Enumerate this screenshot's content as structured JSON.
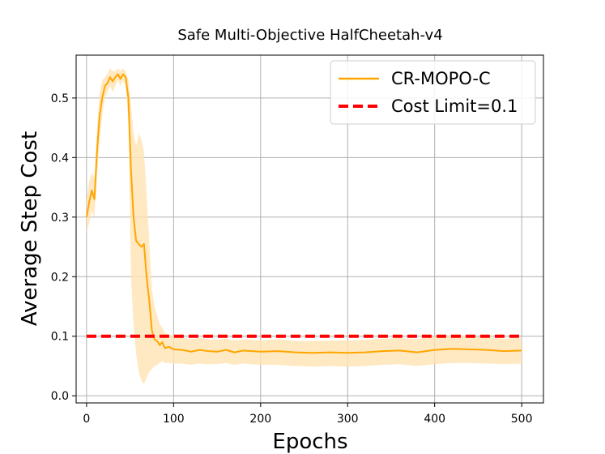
{
  "chart_data": {
    "type": "line",
    "title": "Safe Multi-Objective HalfCheetah-v4",
    "xlabel": "Epochs",
    "ylabel": "Average Step Cost",
    "xlim": [
      -12,
      525
    ],
    "ylim": [
      -0.012,
      0.572
    ],
    "xticks": [
      0,
      100,
      200,
      300,
      400,
      500
    ],
    "yticks": [
      0.0,
      0.1,
      0.2,
      0.3,
      0.4,
      0.5
    ],
    "xtick_labels": [
      "0",
      "100",
      "200",
      "300",
      "400",
      "500"
    ],
    "ytick_labels": [
      "0.0",
      "0.1",
      "0.2",
      "0.3",
      "0.4",
      "0.5"
    ],
    "grid": true,
    "legend_position": "top-right",
    "colors": {
      "series": "#ffa500",
      "band": "#ffe4b3",
      "limit": "#ff0000",
      "grid": "#b0b0b0"
    },
    "series": [
      {
        "name": "CR-MOPO-C",
        "style": "solid",
        "x": [
          0,
          3,
          6,
          9,
          12,
          15,
          18,
          21,
          24,
          27,
          30,
          33,
          36,
          39,
          42,
          45,
          48,
          51,
          54,
          57,
          60,
          63,
          66,
          69,
          72,
          75,
          78,
          81,
          84,
          87,
          90,
          95,
          100,
          110,
          120,
          130,
          140,
          150,
          160,
          170,
          180,
          190,
          200,
          220,
          240,
          260,
          280,
          300,
          320,
          340,
          360,
          380,
          400,
          420,
          440,
          460,
          480,
          500
        ],
        "y": [
          0.3,
          0.325,
          0.345,
          0.33,
          0.41,
          0.47,
          0.5,
          0.52,
          0.525,
          0.535,
          0.528,
          0.535,
          0.54,
          0.532,
          0.54,
          0.535,
          0.5,
          0.38,
          0.3,
          0.26,
          0.255,
          0.25,
          0.255,
          0.2,
          0.16,
          0.11,
          0.095,
          0.092,
          0.085,
          0.09,
          0.08,
          0.082,
          0.078,
          0.077,
          0.074,
          0.077,
          0.075,
          0.074,
          0.077,
          0.073,
          0.076,
          0.075,
          0.074,
          0.075,
          0.073,
          0.072,
          0.073,
          0.072,
          0.073,
          0.075,
          0.076,
          0.073,
          0.077,
          0.079,
          0.078,
          0.077,
          0.075,
          0.076
        ],
        "upper": [
          0.33,
          0.36,
          0.375,
          0.365,
          0.45,
          0.51,
          0.53,
          0.535,
          0.54,
          0.55,
          0.545,
          0.545,
          0.55,
          0.545,
          0.55,
          0.545,
          0.53,
          0.49,
          0.44,
          0.42,
          0.44,
          0.43,
          0.41,
          0.34,
          0.26,
          0.18,
          0.15,
          0.135,
          0.12,
          0.115,
          0.105,
          0.103,
          0.1,
          0.098,
          0.095,
          0.097,
          0.095,
          0.094,
          0.096,
          0.093,
          0.095,
          0.094,
          0.093,
          0.095,
          0.092,
          0.092,
          0.093,
          0.093,
          0.094,
          0.096,
          0.097,
          0.095,
          0.1,
          0.102,
          0.1,
          0.098,
          0.096,
          0.097
        ],
        "lower": [
          0.275,
          0.29,
          0.31,
          0.3,
          0.37,
          0.43,
          0.47,
          0.5,
          0.51,
          0.52,
          0.51,
          0.52,
          0.53,
          0.52,
          0.53,
          0.52,
          0.46,
          0.2,
          0.12,
          0.07,
          0.04,
          0.025,
          0.02,
          0.03,
          0.04,
          0.045,
          0.05,
          0.052,
          0.055,
          0.058,
          0.055,
          0.055,
          0.054,
          0.054,
          0.052,
          0.054,
          0.053,
          0.053,
          0.055,
          0.052,
          0.054,
          0.053,
          0.052,
          0.052,
          0.05,
          0.049,
          0.05,
          0.049,
          0.05,
          0.052,
          0.053,
          0.05,
          0.053,
          0.055,
          0.055,
          0.054,
          0.053,
          0.054
        ]
      },
      {
        "name": "Cost Limit=0.1",
        "style": "dashed",
        "x": [
          0,
          500
        ],
        "y": [
          0.1,
          0.1
        ]
      }
    ]
  }
}
